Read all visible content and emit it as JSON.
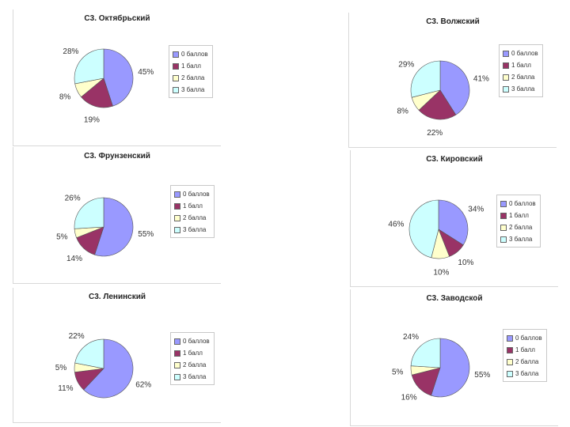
{
  "colors": [
    "#9999ff",
    "#993366",
    "#ffffcc",
    "#ccffff"
  ],
  "legend_labels": [
    "0 баллов",
    "1 балл",
    "2 балла",
    "3 балла"
  ],
  "chart_data": [
    {
      "type": "pie",
      "title": "С3. Октябрьский",
      "categories": [
        "0 баллов",
        "1 балл",
        "2 балла",
        "3 балла"
      ],
      "values": [
        45,
        19,
        8,
        28
      ],
      "labels": [
        "45%",
        "19%",
        "8%",
        "28%"
      ]
    },
    {
      "type": "pie",
      "title": "С3. Волжский",
      "categories": [
        "0 баллов",
        "1 балл",
        "2 балла",
        "3 балла"
      ],
      "values": [
        41,
        22,
        8,
        29
      ],
      "labels": [
        "41%",
        "22%",
        "8%",
        "29%"
      ]
    },
    {
      "type": "pie",
      "title": "С3. Фрунзенский",
      "categories": [
        "0 баллов",
        "1 балл",
        "2 балла",
        "3 балла"
      ],
      "values": [
        55,
        14,
        5,
        26
      ],
      "labels": [
        "55%",
        "14%",
        "5%",
        "26%"
      ]
    },
    {
      "type": "pie",
      "title": "С3. Кировский",
      "categories": [
        "0 баллов",
        "1 балл",
        "2 балла",
        "3 балла"
      ],
      "values": [
        34,
        10,
        10,
        46
      ],
      "labels": [
        "34%",
        "10%",
        "10%",
        "46%"
      ]
    },
    {
      "type": "pie",
      "title": "С3. Ленинский",
      "categories": [
        "0 баллов",
        "1 балл",
        "2 балла",
        "3 балла"
      ],
      "values": [
        62,
        11,
        5,
        22
      ],
      "labels": [
        "62%",
        "11%",
        "5%",
        "22%"
      ]
    },
    {
      "type": "pie",
      "title": "С3. Заводской",
      "categories": [
        "0 баллов",
        "1 балл",
        "2 балла",
        "3 балла"
      ],
      "values": [
        55,
        16,
        5,
        24
      ],
      "labels": [
        "55%",
        "16%",
        "5%",
        "24%"
      ]
    }
  ]
}
